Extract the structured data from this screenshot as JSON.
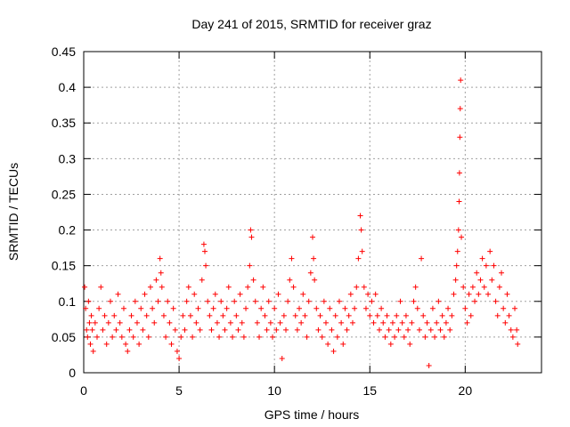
{
  "chart_data": {
    "type": "scatter",
    "title": "Day 241 of 2015, SRMTID for receiver graz",
    "xlabel": "GPS time / hours",
    "ylabel": "SRMTID / TECUs",
    "xlim": [
      0,
      24
    ],
    "ylim": [
      0,
      0.45
    ],
    "grid": true,
    "marker": "plus",
    "color": "#ff0000",
    "x_ticks": [
      0,
      5,
      10,
      15,
      20
    ],
    "x_tick_labels": [
      "0",
      "5",
      "10",
      "15",
      "20"
    ],
    "y_ticks": [
      0,
      0.05,
      0.1,
      0.15,
      0.2,
      0.25,
      0.3,
      0.35,
      0.4,
      0.45
    ],
    "y_tick_labels": [
      "0",
      "0.05",
      "0.1",
      "0.15",
      "0.2",
      "0.25",
      "0.3",
      "0.35",
      "0.4",
      "0.45"
    ],
    "series": [
      {
        "name": "SRMTID",
        "points": [
          [
            0.05,
            0.12
          ],
          [
            0.1,
            0.09
          ],
          [
            0.15,
            0.06
          ],
          [
            0.2,
            0.05
          ],
          [
            0.25,
            0.1
          ],
          [
            0.3,
            0.07
          ],
          [
            0.35,
            0.04
          ],
          [
            0.4,
            0.08
          ],
          [
            0.45,
            0.06
          ],
          [
            0.5,
            0.03
          ],
          [
            0.6,
            0.07
          ],
          [
            0.7,
            0.05
          ],
          [
            0.8,
            0.09
          ],
          [
            0.9,
            0.12
          ],
          [
            1.0,
            0.06
          ],
          [
            1.1,
            0.08
          ],
          [
            1.2,
            0.04
          ],
          [
            1.3,
            0.07
          ],
          [
            1.4,
            0.1
          ],
          [
            1.5,
            0.05
          ],
          [
            1.6,
            0.08
          ],
          [
            1.7,
            0.06
          ],
          [
            1.8,
            0.11
          ],
          [
            1.9,
            0.07
          ],
          [
            2.0,
            0.05
          ],
          [
            2.1,
            0.09
          ],
          [
            2.2,
            0.04
          ],
          [
            2.3,
            0.03
          ],
          [
            2.4,
            0.06
          ],
          [
            2.5,
            0.08
          ],
          [
            2.6,
            0.05
          ],
          [
            2.7,
            0.1
          ],
          [
            2.8,
            0.07
          ],
          [
            2.9,
            0.04
          ],
          [
            3.0,
            0.09
          ],
          [
            3.1,
            0.06
          ],
          [
            3.2,
            0.11
          ],
          [
            3.3,
            0.08
          ],
          [
            3.4,
            0.05
          ],
          [
            3.5,
            0.12
          ],
          [
            3.6,
            0.09
          ],
          [
            3.7,
            0.07
          ],
          [
            3.8,
            0.13
          ],
          [
            3.9,
            0.1
          ],
          [
            4.0,
            0.16
          ],
          [
            4.05,
            0.14
          ],
          [
            4.1,
            0.12
          ],
          [
            4.2,
            0.08
          ],
          [
            4.3,
            0.05
          ],
          [
            4.4,
            0.1
          ],
          [
            4.5,
            0.07
          ],
          [
            4.6,
            0.04
          ],
          [
            4.7,
            0.09
          ],
          [
            4.8,
            0.06
          ],
          [
            4.9,
            0.03
          ],
          [
            5.0,
            0.02
          ],
          [
            5.1,
            0.05
          ],
          [
            5.2,
            0.08
          ],
          [
            5.3,
            0.06
          ],
          [
            5.4,
            0.1
          ],
          [
            5.5,
            0.12
          ],
          [
            5.6,
            0.08
          ],
          [
            5.7,
            0.05
          ],
          [
            5.8,
            0.11
          ],
          [
            5.9,
            0.07
          ],
          [
            6.0,
            0.09
          ],
          [
            6.1,
            0.06
          ],
          [
            6.2,
            0.13
          ],
          [
            6.3,
            0.18
          ],
          [
            6.35,
            0.17
          ],
          [
            6.4,
            0.15
          ],
          [
            6.5,
            0.1
          ],
          [
            6.6,
            0.08
          ],
          [
            6.7,
            0.06
          ],
          [
            6.8,
            0.09
          ],
          [
            6.9,
            0.11
          ],
          [
            7.0,
            0.07
          ],
          [
            7.1,
            0.05
          ],
          [
            7.2,
            0.1
          ],
          [
            7.3,
            0.08
          ],
          [
            7.4,
            0.06
          ],
          [
            7.5,
            0.09
          ],
          [
            7.6,
            0.12
          ],
          [
            7.7,
            0.07
          ],
          [
            7.8,
            0.05
          ],
          [
            7.9,
            0.1
          ],
          [
            8.0,
            0.08
          ],
          [
            8.1,
            0.06
          ],
          [
            8.2,
            0.11
          ],
          [
            8.3,
            0.07
          ],
          [
            8.4,
            0.05
          ],
          [
            8.5,
            0.09
          ],
          [
            8.6,
            0.12
          ],
          [
            8.7,
            0.15
          ],
          [
            8.75,
            0.2
          ],
          [
            8.8,
            0.19
          ],
          [
            8.9,
            0.13
          ],
          [
            9.0,
            0.1
          ],
          [
            9.1,
            0.07
          ],
          [
            9.2,
            0.05
          ],
          [
            9.3,
            0.09
          ],
          [
            9.4,
            0.12
          ],
          [
            9.5,
            0.08
          ],
          [
            9.6,
            0.06
          ],
          [
            9.7,
            0.1
          ],
          [
            9.8,
            0.07
          ],
          [
            9.9,
            0.05
          ],
          [
            10.0,
            0.09
          ],
          [
            10.1,
            0.06
          ],
          [
            10.2,
            0.11
          ],
          [
            10.3,
            0.07
          ],
          [
            10.4,
            0.02
          ],
          [
            10.5,
            0.08
          ],
          [
            10.6,
            0.06
          ],
          [
            10.7,
            0.1
          ],
          [
            10.8,
            0.13
          ],
          [
            10.9,
            0.16
          ],
          [
            11.0,
            0.12
          ],
          [
            11.1,
            0.08
          ],
          [
            11.2,
            0.06
          ],
          [
            11.3,
            0.09
          ],
          [
            11.4,
            0.07
          ],
          [
            11.5,
            0.11
          ],
          [
            11.6,
            0.08
          ],
          [
            11.7,
            0.05
          ],
          [
            11.8,
            0.1
          ],
          [
            11.9,
            0.14
          ],
          [
            12.0,
            0.19
          ],
          [
            12.05,
            0.16
          ],
          [
            12.1,
            0.13
          ],
          [
            12.2,
            0.09
          ],
          [
            12.3,
            0.06
          ],
          [
            12.4,
            0.08
          ],
          [
            12.5,
            0.05
          ],
          [
            12.6,
            0.1
          ],
          [
            12.7,
            0.07
          ],
          [
            12.8,
            0.04
          ],
          [
            12.9,
            0.09
          ],
          [
            13.0,
            0.06
          ],
          [
            13.1,
            0.03
          ],
          [
            13.2,
            0.08
          ],
          [
            13.3,
            0.05
          ],
          [
            13.4,
            0.1
          ],
          [
            13.5,
            0.07
          ],
          [
            13.6,
            0.04
          ],
          [
            13.7,
            0.09
          ],
          [
            13.8,
            0.06
          ],
          [
            13.9,
            0.08
          ],
          [
            14.0,
            0.11
          ],
          [
            14.1,
            0.07
          ],
          [
            14.2,
            0.09
          ],
          [
            14.3,
            0.12
          ],
          [
            14.4,
            0.16
          ],
          [
            14.5,
            0.22
          ],
          [
            14.55,
            0.2
          ],
          [
            14.6,
            0.17
          ],
          [
            14.7,
            0.12
          ],
          [
            14.8,
            0.09
          ],
          [
            14.9,
            0.11
          ],
          [
            15.0,
            0.08
          ],
          [
            15.1,
            0.1
          ],
          [
            15.2,
            0.07
          ],
          [
            15.3,
            0.11
          ],
          [
            15.4,
            0.08
          ],
          [
            15.5,
            0.06
          ],
          [
            15.6,
            0.09
          ],
          [
            15.7,
            0.07
          ],
          [
            15.8,
            0.05
          ],
          [
            15.9,
            0.08
          ],
          [
            16.0,
            0.06
          ],
          [
            16.1,
            0.04
          ],
          [
            16.2,
            0.07
          ],
          [
            16.3,
            0.05
          ],
          [
            16.4,
            0.08
          ],
          [
            16.5,
            0.06
          ],
          [
            16.6,
            0.1
          ],
          [
            16.7,
            0.07
          ],
          [
            16.8,
            0.05
          ],
          [
            16.9,
            0.08
          ],
          [
            17.0,
            0.06
          ],
          [
            17.1,
            0.04
          ],
          [
            17.2,
            0.07
          ],
          [
            17.3,
            0.1
          ],
          [
            17.4,
            0.12
          ],
          [
            17.5,
            0.09
          ],
          [
            17.6,
            0.06
          ],
          [
            17.7,
            0.16
          ],
          [
            17.8,
            0.08
          ],
          [
            17.9,
            0.05
          ],
          [
            18.0,
            0.07
          ],
          [
            18.1,
            0.01
          ],
          [
            18.2,
            0.06
          ],
          [
            18.3,
            0.09
          ],
          [
            18.4,
            0.05
          ],
          [
            18.5,
            0.07
          ],
          [
            18.6,
            0.1
          ],
          [
            18.7,
            0.06
          ],
          [
            18.8,
            0.08
          ],
          [
            18.9,
            0.05
          ],
          [
            19.0,
            0.07
          ],
          [
            19.1,
            0.09
          ],
          [
            19.2,
            0.06
          ],
          [
            19.3,
            0.08
          ],
          [
            19.4,
            0.11
          ],
          [
            19.5,
            0.13
          ],
          [
            19.55,
            0.15
          ],
          [
            19.6,
            0.17
          ],
          [
            19.65,
            0.2
          ],
          [
            19.68,
            0.24
          ],
          [
            19.7,
            0.28
          ],
          [
            19.72,
            0.33
          ],
          [
            19.74,
            0.37
          ],
          [
            19.76,
            0.41
          ],
          [
            19.8,
            0.19
          ],
          [
            19.9,
            0.12
          ],
          [
            20.0,
            0.09
          ],
          [
            20.1,
            0.07
          ],
          [
            20.2,
            0.11
          ],
          [
            20.3,
            0.08
          ],
          [
            20.4,
            0.12
          ],
          [
            20.5,
            0.1
          ],
          [
            20.6,
            0.14
          ],
          [
            20.7,
            0.11
          ],
          [
            20.8,
            0.13
          ],
          [
            20.9,
            0.16
          ],
          [
            21.0,
            0.12
          ],
          [
            21.1,
            0.15
          ],
          [
            21.2,
            0.11
          ],
          [
            21.3,
            0.17
          ],
          [
            21.4,
            0.13
          ],
          [
            21.5,
            0.15
          ],
          [
            21.6,
            0.1
          ],
          [
            21.7,
            0.08
          ],
          [
            21.8,
            0.12
          ],
          [
            21.9,
            0.14
          ],
          [
            22.0,
            0.09
          ],
          [
            22.1,
            0.07
          ],
          [
            22.2,
            0.11
          ],
          [
            22.3,
            0.08
          ],
          [
            22.4,
            0.06
          ],
          [
            22.5,
            0.05
          ],
          [
            22.6,
            0.09
          ],
          [
            22.7,
            0.06
          ],
          [
            22.75,
            0.04
          ]
        ]
      }
    ]
  }
}
